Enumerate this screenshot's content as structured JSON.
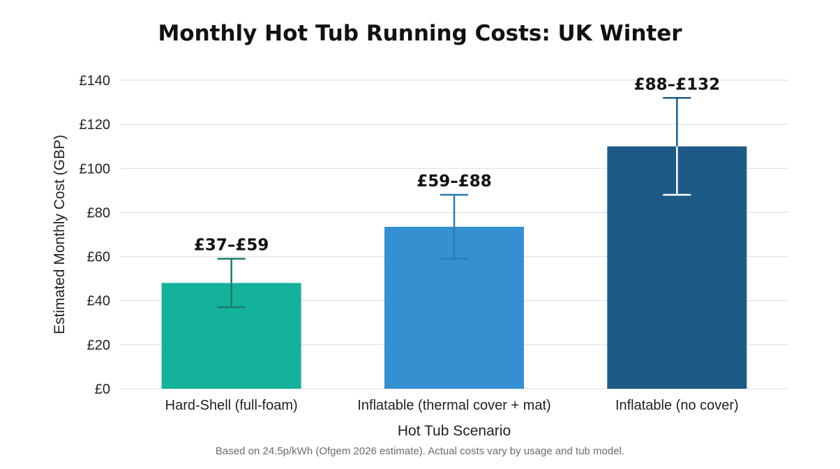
{
  "chart_data": {
    "type": "bar",
    "title": "Monthly Hot Tub Running Costs: UK Winter",
    "xlabel": "Hot Tub Scenario",
    "ylabel": "Estimated Monthly Cost (GBP)",
    "ylim": [
      0,
      140
    ],
    "yticks": [
      0,
      20,
      40,
      60,
      80,
      100,
      120,
      140
    ],
    "ytick_labels": [
      "£0",
      "£20",
      "£40",
      "£60",
      "£80",
      "£100",
      "£120",
      "£140"
    ],
    "grid": true,
    "categories": [
      "Hard-Shell (full-foam)",
      "Inflatable (thermal cover + mat)",
      "Inflatable (no cover)"
    ],
    "values": [
      48,
      73.5,
      110
    ],
    "error_low": [
      37,
      59,
      88
    ],
    "error_high": [
      59,
      88,
      132
    ],
    "data_labels": [
      "£37–£59",
      "£59–£88",
      "£88–£132"
    ],
    "colors": [
      "#14b29a",
      "#3590d2",
      "#1e5a86"
    ],
    "error_colors": [
      "#1a7a70",
      "#2a7ab4",
      "#ffffff"
    ],
    "error_top_color": "#1e5a86",
    "footnote": "Based on 24.5p/kWh (Ofgem 2026 estimate). Actual costs vary by usage and tub model."
  }
}
